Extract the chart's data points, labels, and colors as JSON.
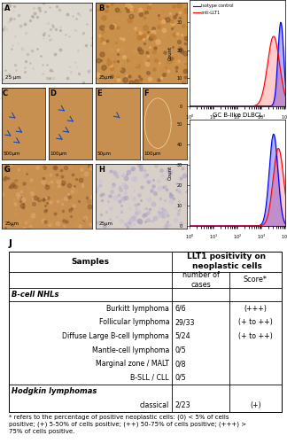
{
  "col1_header": "Samples",
  "col2_header": "LLT1 positivity on\nneoplastic cells",
  "col2_sub1": "number of\ncases",
  "col2_sub2": "Score*",
  "section1_header": "B-cell NHLs",
  "rows": [
    {
      "name": "Burkitt lymphoma",
      "cases": "6/6",
      "score": "(+++)"
    },
    {
      "name": "Follicular lymphoma",
      "cases": "29/33",
      "score": "(+ to ++)"
    },
    {
      "name": "Diffuse Large B-cell lymphoma",
      "cases": "5/24",
      "score": "(+ to ++)"
    },
    {
      "name": "Mantle-cell lymphoma",
      "cases": "0/5",
      "score": ""
    },
    {
      "name": "Marginal zone / MALT",
      "cases": "0/8",
      "score": ""
    },
    {
      "name": "B-SLL / CLL",
      "cases": "0/5",
      "score": ""
    }
  ],
  "section2_header": "Hodgkin lymphomas",
  "rows2": [
    {
      "name": "classical",
      "cases": "2/23",
      "score": "(+)"
    }
  ],
  "footnote": "* refers to the percentage of positive neoplastic cells: (0) < 5% of cells\npositive; (+) 5-50% of cells positive; (++) 50-75% of cells positive; (+++) >\n75% of cells positive.",
  "panel_A_color": "#e8e0d8",
  "panel_B_color": "#c8904a",
  "panel_C_color": "#c89050",
  "panel_D_color": "#c89050",
  "panel_E_color": "#c89050",
  "panel_F_color": "#c89050",
  "panel_G_color": "#c89050",
  "panel_H_color": "#d0c8c0",
  "bg_color": "#ffffff",
  "border_color": "#000000",
  "text_color": "#000000"
}
